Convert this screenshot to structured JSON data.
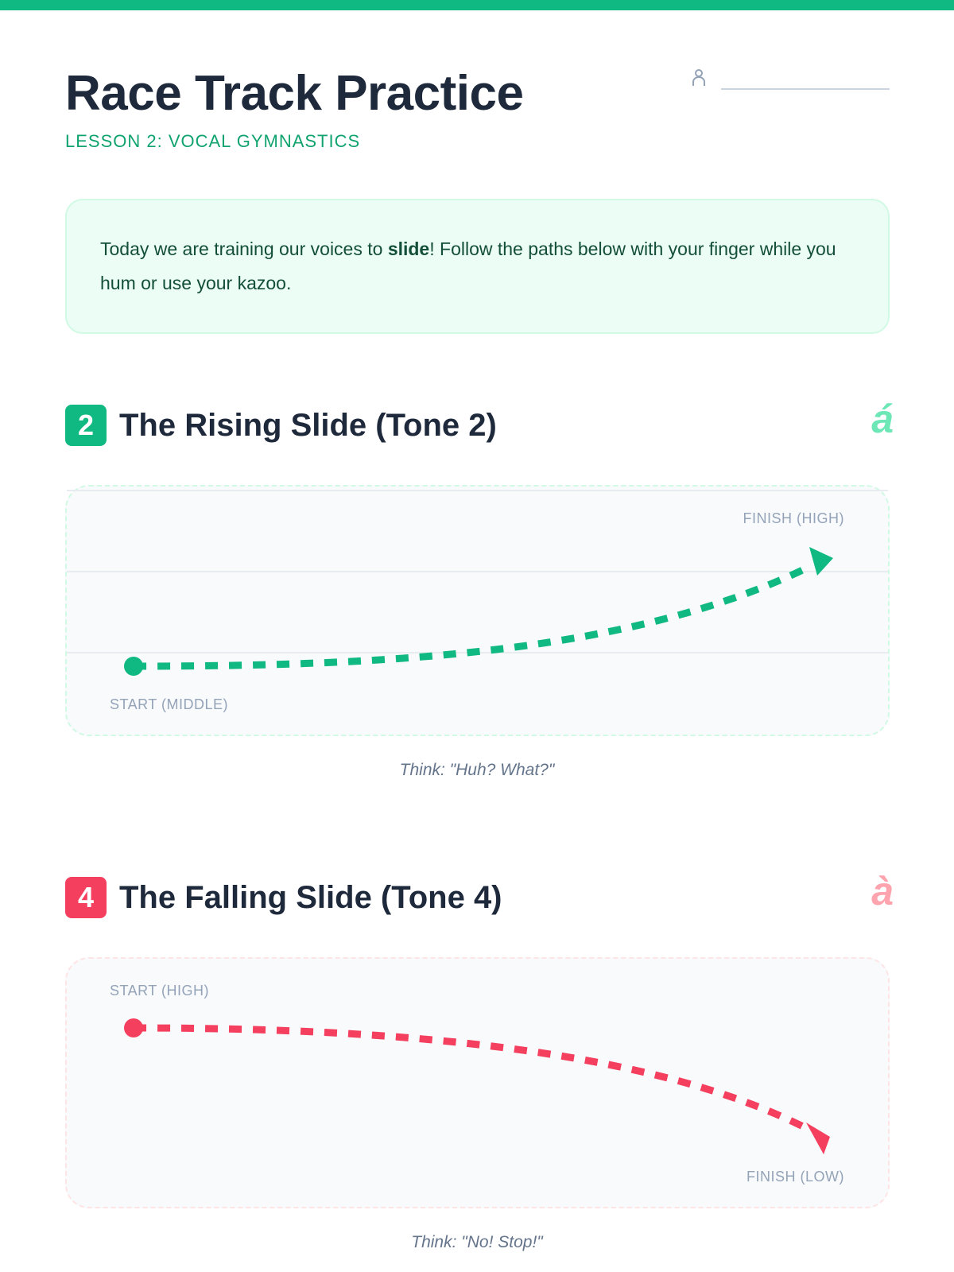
{
  "header": {
    "title": "Race Track Practice",
    "subtitle": "LESSON 2: VOCAL GYMNASTICS",
    "name_icon": "user-icon"
  },
  "intro": {
    "before": "Today we are training our voices to ",
    "bold": "slide",
    "after": "! Follow the paths below with your finger while you hum or use your kazoo."
  },
  "sections": [
    {
      "badge": "2",
      "title": "The Rising Slide (Tone 2)",
      "glyph": "á",
      "color": "#10b981",
      "glyph_color": "#6ee7b7",
      "start_label": "START (MIDDLE)",
      "finish_label": "FINISH (HIGH)",
      "caption": "Think: \"Huh? What?\""
    },
    {
      "badge": "4",
      "title": "The Falling Slide (Tone 4)",
      "glyph": "à",
      "color": "#f43f5e",
      "glyph_color": "#fda4af",
      "start_label": "START (HIGH)",
      "finish_label": "FINISH (LOW)",
      "caption": "Think: \"No! Stop!\""
    }
  ]
}
